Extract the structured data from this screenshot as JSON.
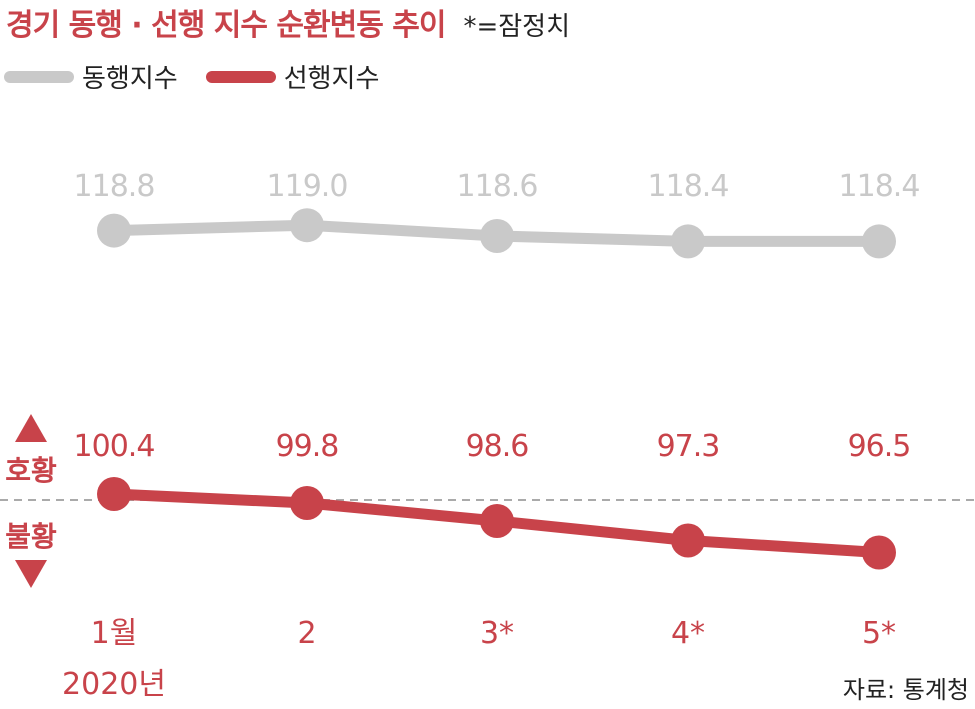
{
  "header": {
    "title": "경기 동행 · 선행 지수 순환변동 추이",
    "note": "*=잠정치"
  },
  "legend": [
    {
      "label": "동행지수",
      "color": "#c9c9c9"
    },
    {
      "label": "선행지수",
      "color": "#c8434a"
    }
  ],
  "zone_labels": {
    "up": "호황",
    "down": "불황"
  },
  "source": "자료: 통계청",
  "chart_data": {
    "type": "line",
    "categories": [
      "1월",
      "2",
      "3*",
      "4*",
      "5*"
    ],
    "category_sublabels": [
      "2020년",
      "",
      "",
      "",
      ""
    ],
    "reference_line": 100,
    "series": [
      {
        "name": "동행지수",
        "values": [
          118.8,
          119.0,
          118.6,
          118.4,
          118.4
        ],
        "color": "#c9c9c9",
        "value_labels": [
          "118.8",
          "119.0",
          "118.6",
          "118.4",
          "118.4"
        ]
      },
      {
        "name": "선행지수",
        "values": [
          100.4,
          99.8,
          98.6,
          97.3,
          96.5
        ],
        "color": "#c8434a",
        "value_labels": [
          "100.4",
          "99.8",
          "98.6",
          "97.3",
          "96.5"
        ]
      }
    ]
  }
}
